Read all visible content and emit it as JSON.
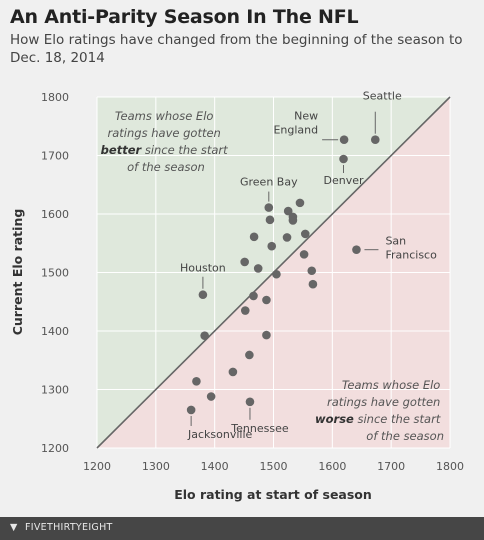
{
  "title": "An Anti-Parity Season In The NFL",
  "subtitle": "How Elo ratings have changed from the beginning of the season to Dec. 18, 2014",
  "footer": {
    "brand": "FIVETHIRTYEIGHT",
    "icon": "fivethirtyeight-logo-icon"
  },
  "colors": {
    "background": "#f0f0f0",
    "better_region": "#dfe8dc",
    "worse_region": "#f2dede",
    "point": "#666666",
    "diagonal": "#666666",
    "grid": "#ffffff"
  },
  "chart_data": {
    "type": "scatter",
    "title": "An Anti-Parity Season In The NFL",
    "xlabel": "Elo rating at start of season",
    "ylabel": "Current Elo rating",
    "xlim": [
      1200,
      1800
    ],
    "ylim": [
      1200,
      1800
    ],
    "xticks": [
      "1200",
      "1300",
      "1400",
      "1500",
      "1600",
      "1700",
      "1800"
    ],
    "yticks": [
      "1200",
      "1300",
      "1400",
      "1500",
      "1600",
      "1700",
      "1800"
    ],
    "grid": true,
    "diagonal": "y = x",
    "regions": {
      "better": {
        "line1": "Teams whose Elo",
        "line2": "ratings have gotten",
        "emph": "better",
        "rest": " since the start",
        "line4": "of the season"
      },
      "worse": {
        "line1": "Teams whose Elo",
        "line2": "ratings have gotten",
        "emph": "worse",
        "rest": " since the start",
        "line4": "of the season"
      }
    },
    "points": [
      {
        "x": 1673,
        "y": 1727,
        "label": "Seattle"
      },
      {
        "x": 1620,
        "y": 1727,
        "label": "New England"
      },
      {
        "x": 1619,
        "y": 1694,
        "label": "Denver"
      },
      {
        "x": 1492,
        "y": 1611,
        "label": "Green Bay"
      },
      {
        "x": 1641,
        "y": 1539,
        "label": "San Francisco"
      },
      {
        "x": 1380,
        "y": 1462,
        "label": "Houston"
      },
      {
        "x": 1360,
        "y": 1265,
        "label": "Jacksonville"
      },
      {
        "x": 1460,
        "y": 1279,
        "label": "Tennessee"
      },
      {
        "x": 1545,
        "y": 1619,
        "label": ""
      },
      {
        "x": 1525,
        "y": 1605,
        "label": ""
      },
      {
        "x": 1533,
        "y": 1595,
        "label": ""
      },
      {
        "x": 1533,
        "y": 1589,
        "label": ""
      },
      {
        "x": 1494,
        "y": 1590,
        "label": ""
      },
      {
        "x": 1554,
        "y": 1566,
        "label": ""
      },
      {
        "x": 1467,
        "y": 1561,
        "label": ""
      },
      {
        "x": 1523,
        "y": 1560,
        "label": ""
      },
      {
        "x": 1497,
        "y": 1545,
        "label": ""
      },
      {
        "x": 1552,
        "y": 1531,
        "label": ""
      },
      {
        "x": 1451,
        "y": 1518,
        "label": ""
      },
      {
        "x": 1474,
        "y": 1507,
        "label": ""
      },
      {
        "x": 1565,
        "y": 1503,
        "label": ""
      },
      {
        "x": 1505,
        "y": 1497,
        "label": ""
      },
      {
        "x": 1567,
        "y": 1480,
        "label": ""
      },
      {
        "x": 1466,
        "y": 1460,
        "label": ""
      },
      {
        "x": 1488,
        "y": 1453,
        "label": ""
      },
      {
        "x": 1452,
        "y": 1435,
        "label": ""
      },
      {
        "x": 1383,
        "y": 1392,
        "label": ""
      },
      {
        "x": 1488,
        "y": 1393,
        "label": ""
      },
      {
        "x": 1459,
        "y": 1359,
        "label": ""
      },
      {
        "x": 1431,
        "y": 1330,
        "label": ""
      },
      {
        "x": 1369,
        "y": 1314,
        "label": ""
      },
      {
        "x": 1394,
        "y": 1288,
        "label": ""
      }
    ]
  }
}
